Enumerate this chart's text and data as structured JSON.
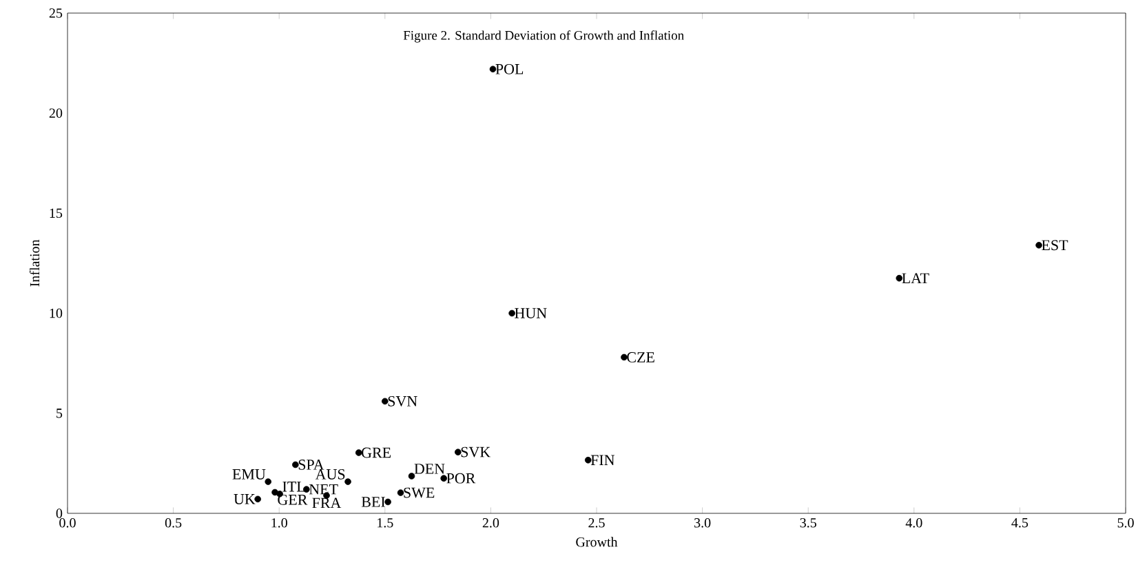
{
  "chart_data": {
    "type": "scatter",
    "title": "Figure 2. Standard Deviation of Growth and Inflation",
    "xlabel": "Growth",
    "ylabel": "Inflation",
    "x": [
      2.01,
      2.1,
      2.63,
      1.5,
      4.59,
      3.93,
      2.46,
      1.845,
      1.376,
      1.077,
      1.325,
      1.626,
      1.778,
      0.948,
      1.003,
      1.129,
      0.899,
      0.98,
      1.224,
      1.514,
      1.574
    ],
    "values": [
      22.2,
      10.0,
      7.8,
      5.6,
      13.4,
      11.75,
      2.66,
      3.06,
      3.03,
      2.43,
      1.58,
      1.86,
      1.75,
      1.58,
      0.97,
      1.2,
      0.71,
      1.05,
      0.89,
      0.57,
      1.03
    ],
    "value_labels": [
      "POL",
      "HUN",
      "CZE",
      "SVN",
      "EST",
      "LAT",
      "FIN",
      "SVK",
      "GRE",
      "SPA",
      "AUS",
      "DEN",
      "POR",
      "EMU",
      "ITL",
      "NET",
      "UK",
      "GER",
      "FRA",
      "BEI",
      "SWE"
    ],
    "color": "#000000",
    "marker": "circle",
    "xlim": [
      0,
      5
    ],
    "ylim": [
      0,
      25
    ],
    "xticks": [
      {
        "value": 0,
        "label": "0.0"
      },
      {
        "value": 0.5,
        "label": "0.5"
      },
      {
        "value": 1,
        "label": "1.0"
      },
      {
        "value": 1.5,
        "label": "1.5"
      },
      {
        "value": 2,
        "label": "2.0"
      },
      {
        "value": 2.5,
        "label": "2.5"
      },
      {
        "value": 3,
        "label": "3.0"
      },
      {
        "value": 3.5,
        "label": "3.5"
      },
      {
        "value": 4,
        "label": "4.0"
      },
      {
        "value": 4.5,
        "label": "4.5"
      },
      {
        "value": 5,
        "label": "5.0"
      }
    ],
    "yticks": [
      0,
      5,
      10,
      15,
      20,
      25
    ]
  }
}
